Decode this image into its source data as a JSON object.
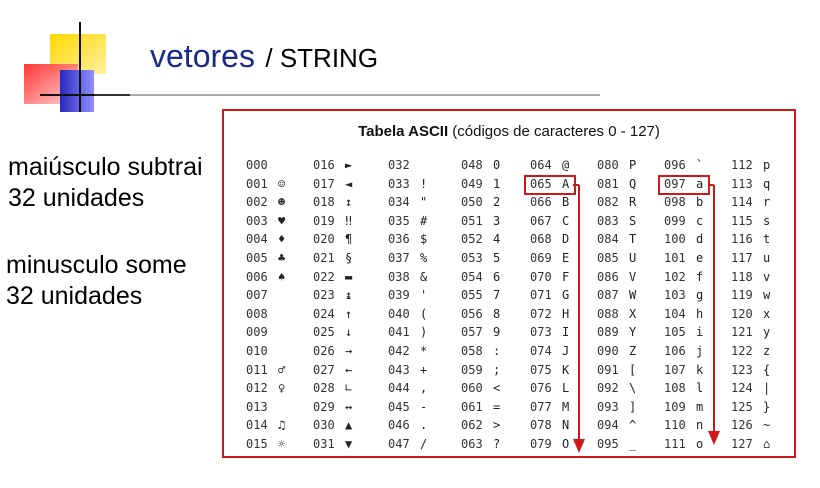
{
  "title": {
    "main": "vetores",
    "sub": "/ STRING"
  },
  "notes": [
    {
      "line1": "maiúsculo subtrai",
      "line2": "32 unidades"
    },
    {
      "line1": "minusculo some",
      "line2": "32 unidades"
    }
  ],
  "table": {
    "heading_bold": "Tabela ASCII",
    "heading_rest": " (códigos de caracteres 0 - 127)",
    "columns": [
      [
        [
          "000",
          ""
        ],
        [
          "001",
          "☺"
        ],
        [
          "002",
          "☻"
        ],
        [
          "003",
          "♥"
        ],
        [
          "004",
          "♦"
        ],
        [
          "005",
          "♣"
        ],
        [
          "006",
          "♠"
        ],
        [
          "007",
          ""
        ],
        [
          "008",
          ""
        ],
        [
          "009",
          ""
        ],
        [
          "010",
          ""
        ],
        [
          "011",
          "♂"
        ],
        [
          "012",
          "♀"
        ],
        [
          "013",
          ""
        ],
        [
          "014",
          "♫"
        ],
        [
          "015",
          "☼"
        ]
      ],
      [
        [
          "016",
          "►"
        ],
        [
          "017",
          "◄"
        ],
        [
          "018",
          "↕"
        ],
        [
          "019",
          "‼"
        ],
        [
          "020",
          "¶"
        ],
        [
          "021",
          "§"
        ],
        [
          "022",
          "▬"
        ],
        [
          "023",
          "↨"
        ],
        [
          "024",
          "↑"
        ],
        [
          "025",
          "↓"
        ],
        [
          "026",
          "→"
        ],
        [
          "027",
          "←"
        ],
        [
          "028",
          "∟"
        ],
        [
          "029",
          "↔"
        ],
        [
          "030",
          "▲"
        ],
        [
          "031",
          "▼"
        ]
      ],
      [
        [
          "032",
          ""
        ],
        [
          "033",
          "!"
        ],
        [
          "034",
          "\""
        ],
        [
          "035",
          "#"
        ],
        [
          "036",
          "$"
        ],
        [
          "037",
          "%"
        ],
        [
          "038",
          "&"
        ],
        [
          "039",
          "'"
        ],
        [
          "040",
          "("
        ],
        [
          "041",
          ")"
        ],
        [
          "042",
          "*"
        ],
        [
          "043",
          "+"
        ],
        [
          "044",
          ","
        ],
        [
          "045",
          "-"
        ],
        [
          "046",
          "."
        ],
        [
          "047",
          "/"
        ]
      ],
      [
        [
          "048",
          "0"
        ],
        [
          "049",
          "1"
        ],
        [
          "050",
          "2"
        ],
        [
          "051",
          "3"
        ],
        [
          "052",
          "4"
        ],
        [
          "053",
          "5"
        ],
        [
          "054",
          "6"
        ],
        [
          "055",
          "7"
        ],
        [
          "056",
          "8"
        ],
        [
          "057",
          "9"
        ],
        [
          "058",
          ":"
        ],
        [
          "059",
          ";"
        ],
        [
          "060",
          "<"
        ],
        [
          "061",
          "="
        ],
        [
          "062",
          ">"
        ],
        [
          "063",
          "?"
        ]
      ],
      [
        [
          "064",
          "@"
        ],
        [
          "065",
          "A"
        ],
        [
          "066",
          "B"
        ],
        [
          "067",
          "C"
        ],
        [
          "068",
          "D"
        ],
        [
          "069",
          "E"
        ],
        [
          "070",
          "F"
        ],
        [
          "071",
          "G"
        ],
        [
          "072",
          "H"
        ],
        [
          "073",
          "I"
        ],
        [
          "074",
          "J"
        ],
        [
          "075",
          "K"
        ],
        [
          "076",
          "L"
        ],
        [
          "077",
          "M"
        ],
        [
          "078",
          "N"
        ],
        [
          "079",
          "O"
        ]
      ],
      [
        [
          "080",
          "P"
        ],
        [
          "081",
          "Q"
        ],
        [
          "082",
          "R"
        ],
        [
          "083",
          "S"
        ],
        [
          "084",
          "T"
        ],
        [
          "085",
          "U"
        ],
        [
          "086",
          "V"
        ],
        [
          "087",
          "W"
        ],
        [
          "088",
          "X"
        ],
        [
          "089",
          "Y"
        ],
        [
          "090",
          "Z"
        ],
        [
          "091",
          "["
        ],
        [
          "092",
          "\\"
        ],
        [
          "093",
          "]"
        ],
        [
          "094",
          "^"
        ],
        [
          "095",
          "_"
        ]
      ],
      [
        [
          "096",
          "`"
        ],
        [
          "097",
          "a"
        ],
        [
          "098",
          "b"
        ],
        [
          "099",
          "c"
        ],
        [
          "100",
          "d"
        ],
        [
          "101",
          "e"
        ],
        [
          "102",
          "f"
        ],
        [
          "103",
          "g"
        ],
        [
          "104",
          "h"
        ],
        [
          "105",
          "i"
        ],
        [
          "106",
          "j"
        ],
        [
          "107",
          "k"
        ],
        [
          "108",
          "l"
        ],
        [
          "109",
          "m"
        ],
        [
          "110",
          "n"
        ],
        [
          "111",
          "o"
        ]
      ],
      [
        [
          "112",
          "p"
        ],
        [
          "113",
          "q"
        ],
        [
          "114",
          "r"
        ],
        [
          "115",
          "s"
        ],
        [
          "116",
          "t"
        ],
        [
          "117",
          "u"
        ],
        [
          "118",
          "v"
        ],
        [
          "119",
          "w"
        ],
        [
          "120",
          "x"
        ],
        [
          "121",
          "y"
        ],
        [
          "122",
          "z"
        ],
        [
          "123",
          "{"
        ],
        [
          "124",
          "|"
        ],
        [
          "125",
          "}"
        ],
        [
          "126",
          "~"
        ],
        [
          "127",
          "⌂"
        ]
      ]
    ],
    "highlight": [
      {
        "code": "065",
        "char": "A"
      },
      {
        "code": "097",
        "char": "a"
      }
    ]
  },
  "colors": {
    "accent_red": "#d01818",
    "title_blue": "#1a2a8c",
    "logo_yellow": "#ffcc00",
    "logo_blue": "#3030c8",
    "logo_red": "#e83030"
  }
}
